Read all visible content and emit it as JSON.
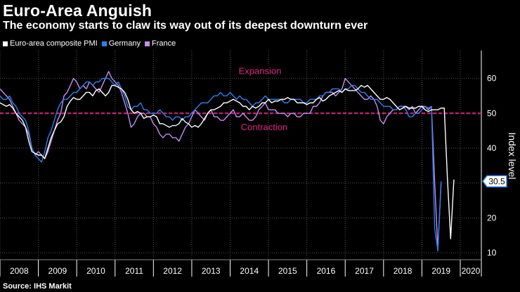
{
  "title": "Euro-Area Anguish",
  "subtitle": "The economy starts to claw its way out of its deepest downturn ever",
  "source": "Source: IHS Markit",
  "colors": {
    "euro": "#ffffff",
    "germany": "#2f7fe8",
    "france": "#c58cf2",
    "threshold": "#e0267f",
    "grid": "#555555"
  },
  "chart_data": {
    "type": "line",
    "xlabel": "",
    "ylabel": "Index level",
    "xlim": [
      2008.0,
      2020.55
    ],
    "ylim": [
      8,
      68
    ],
    "yticks": [
      10,
      20,
      30,
      40,
      50,
      60
    ],
    "xtick_labels": [
      "2008",
      "2009",
      "2010",
      "2011",
      "2012",
      "2013",
      "2014",
      "2015",
      "2016",
      "2017",
      "2018",
      "2019",
      "2020"
    ],
    "grid": true,
    "legend_position": "top-left",
    "threshold": {
      "value": 50,
      "above_label": "Expansion",
      "below_label": "Contraction"
    },
    "last_value_label": "30.5",
    "x_start": 2008.0,
    "x_step": 0.08333,
    "series": [
      {
        "name": "Euro-area composite PMI",
        "color_key": "euro",
        "values": [
          53,
          52.5,
          52,
          52.5,
          51.5,
          50,
          49,
          48,
          46,
          42,
          39,
          38.5,
          38,
          38,
          37,
          40,
          43,
          45,
          47,
          47.5,
          49,
          52,
          53.5,
          54.5,
          54,
          54,
          55,
          56,
          56,
          55,
          56.5,
          57,
          56,
          55,
          56,
          58,
          58,
          57.5,
          57,
          56,
          54,
          51,
          50,
          50.5,
          50,
          48.5,
          49,
          49,
          49.5,
          49,
          47,
          47,
          46.5,
          46,
          46.5,
          46.5,
          47,
          48.5,
          47.5,
          47,
          46,
          46.5,
          46,
          47,
          48.5,
          50,
          51,
          51,
          51.5,
          52,
          53,
          53,
          53.5,
          54,
          53.5,
          53,
          52,
          52,
          51,
          52,
          51.5,
          52,
          53,
          53,
          54,
          53,
          53.5,
          53.5,
          54,
          54,
          54.5,
          54,
          54,
          53,
          53,
          53,
          52.5,
          53,
          53,
          54,
          54.5,
          53.5,
          54,
          55,
          55.5,
          56,
          56.5,
          56,
          57,
          56.5,
          56.5,
          56.5,
          57,
          58,
          57.5,
          58,
          57,
          56,
          55,
          54,
          54,
          54.5,
          54,
          53,
          52,
          51,
          51.5,
          52,
          51.5,
          51.5,
          51.5,
          52,
          52,
          51,
          50.5,
          51,
          51,
          51,
          51.5,
          51.5,
          31,
          14,
          31
        ]
      },
      {
        "name": "Germany",
        "color_key": "germany",
        "values": [
          55,
          54,
          54,
          55,
          53,
          52,
          50,
          49,
          48,
          45,
          40,
          38,
          37,
          36,
          39,
          43,
          45,
          48,
          51,
          53,
          54,
          54,
          55,
          56,
          56,
          57,
          58,
          59,
          59,
          58,
          59,
          59,
          60,
          60,
          60,
          59,
          58,
          59,
          57,
          55,
          52,
          51,
          52,
          52,
          53,
          51,
          51,
          50,
          50,
          50,
          51,
          50,
          49,
          49,
          48,
          49,
          49,
          48,
          49,
          49,
          50,
          51,
          52,
          53,
          53,
          53,
          54,
          55,
          55,
          56,
          55,
          55,
          56,
          55,
          54,
          55,
          54,
          54,
          53,
          52,
          53,
          53,
          54,
          55,
          54,
          54,
          54,
          54,
          54,
          53,
          53,
          54,
          54,
          54,
          54,
          53,
          53,
          54,
          54,
          54,
          55,
          55,
          56,
          56,
          57,
          57,
          57,
          56,
          57,
          57,
          58,
          58,
          57,
          56,
          56,
          55,
          54,
          54,
          54,
          53,
          52,
          52,
          52,
          51,
          51,
          52,
          52,
          51,
          49,
          49,
          50,
          50,
          51,
          52,
          51.5,
          52,
          17,
          10.5,
          30.5
        ]
      },
      {
        "name": "France",
        "color_key": "france",
        "values": [
          57,
          56,
          55,
          54,
          52,
          50,
          48,
          47,
          46,
          44,
          40,
          38,
          39,
          38,
          37,
          39,
          42,
          45,
          48,
          50,
          55,
          56,
          58,
          60,
          59,
          57,
          58,
          57,
          59,
          58,
          57,
          56,
          58,
          60,
          62,
          60,
          59,
          58,
          56,
          53,
          50,
          46,
          47,
          49,
          50,
          50,
          49,
          49,
          47,
          46,
          44,
          43,
          44,
          44,
          43,
          43,
          42,
          44,
          46,
          47,
          49,
          51,
          50,
          49,
          48,
          50,
          51,
          49,
          49,
          48,
          48,
          49,
          50,
          51,
          49,
          49,
          50,
          49,
          48,
          48,
          49,
          51,
          52,
          53,
          51,
          51,
          51,
          50,
          50,
          50,
          49,
          50,
          50,
          49,
          49,
          50,
          50,
          50,
          52,
          52,
          53,
          55,
          56,
          56,
          56,
          55,
          56,
          57,
          60,
          59,
          58,
          57,
          56,
          55,
          54,
          54,
          55,
          54,
          52,
          48,
          47,
          49,
          50,
          51,
          51,
          52,
          52,
          52,
          51,
          52,
          50,
          51,
          52,
          52,
          51,
          52,
          30,
          11,
          30
        ]
      }
    ]
  }
}
